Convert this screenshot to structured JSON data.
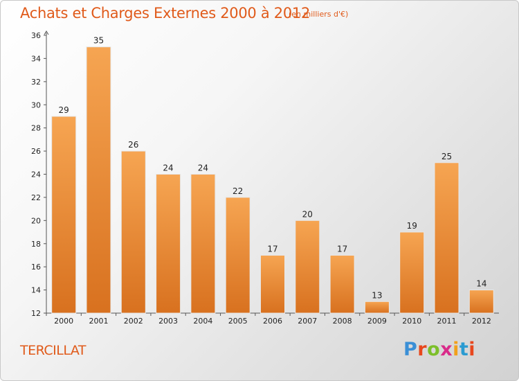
{
  "header": {
    "title": "Achats et Charges Externes 2000 à 2012",
    "subtitle": "(en milliers d'€)"
  },
  "footer": {
    "commune": "TERCILLAT",
    "logo": "Proxiti",
    "logo_letter_colors": [
      "#3a8fd6",
      "#e8471d",
      "#7cbf2a",
      "#d92b8a",
      "#f1a01b",
      "#2a9bd1",
      "#e8471d"
    ]
  },
  "colors": {
    "bar_light": "#f6a552",
    "bar_dark": "#d8711f",
    "text_accent": "#e05a1a"
  },
  "chart_data": {
    "type": "bar",
    "categories": [
      "2000",
      "2001",
      "2002",
      "2003",
      "2004",
      "2005",
      "2006",
      "2007",
      "2008",
      "2009",
      "2010",
      "2011",
      "2012"
    ],
    "values": [
      29,
      35,
      26,
      24,
      24,
      22,
      17,
      20,
      17,
      13,
      19,
      25,
      14
    ],
    "yticks": [
      12,
      14,
      16,
      18,
      20,
      22,
      24,
      26,
      28,
      30,
      32,
      34,
      36
    ],
    "ylim": [
      12,
      36
    ],
    "grid": false,
    "data_labels": true
  }
}
